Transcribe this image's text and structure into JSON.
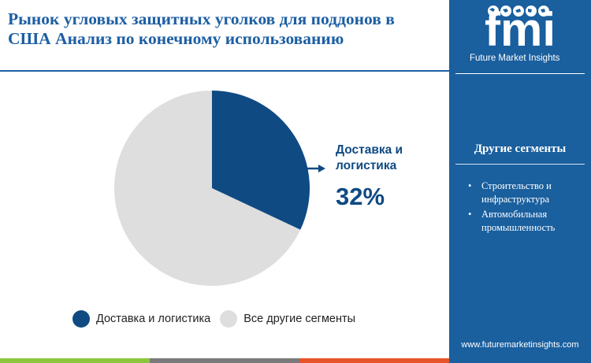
{
  "title_line1": "Рынок угловых защитных уголков для поддонов в",
  "title_line2": "США Анализ по конечному использованию",
  "colors": {
    "primary": "#0f4a83",
    "secondary": "#dedede",
    "sidebar": "#1a5f9e",
    "title": "#1d5fa3",
    "bar": [
      "#8cc63f",
      "#7a7a7a",
      "#e8542a",
      "#1a5f9e"
    ]
  },
  "chart_data": {
    "type": "pie",
    "categories": [
      "Доставка и логистика",
      "Все другие сегменты"
    ],
    "values": [
      32,
      68
    ],
    "legend_position": "bottom"
  },
  "callout": {
    "label": "Доставка и логистика",
    "value": "32%"
  },
  "legend": [
    {
      "label": "Доставка и логистика",
      "color": "#0f4a83"
    },
    {
      "label": "Все другие сегменты",
      "color": "#dedede"
    }
  ],
  "sidebar": {
    "logo_word": "fmi",
    "logo_text": "Future Market Insights",
    "heading": "Другие сегменты",
    "items": [
      "Строительство и инфраструктура",
      "Автомобильная промышленность"
    ],
    "url": "www.futuremarketinsights.com"
  }
}
